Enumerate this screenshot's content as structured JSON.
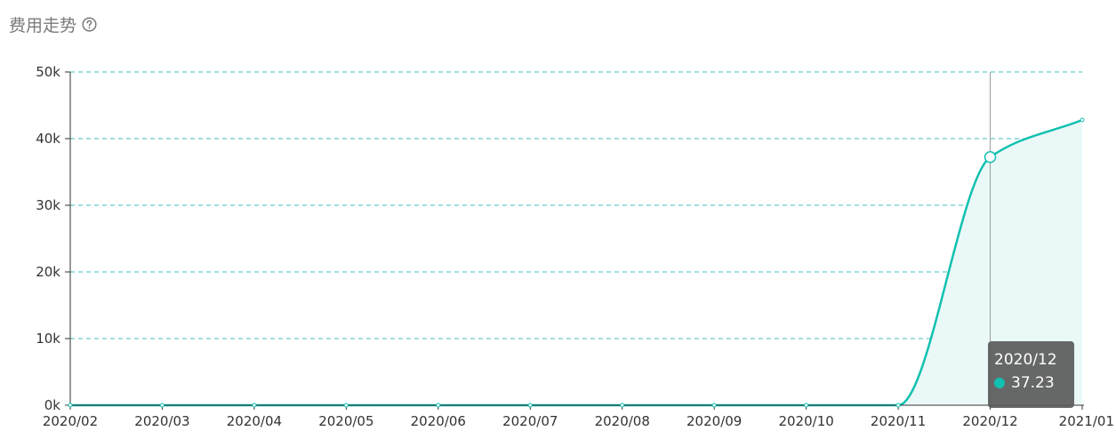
{
  "header": {
    "title": "费用走势",
    "help_icon": "question-circle-icon"
  },
  "colors": {
    "line": "#11c0b0",
    "area": "#eaf9f8",
    "grid": "#3cc0c0",
    "axis": "#333333",
    "header_text": "#7a7a7a",
    "tooltip_bg": "#5a5a5a"
  },
  "chart_data": {
    "type": "area",
    "title": "费用走势",
    "xlabel": "",
    "ylabel": "",
    "categories": [
      "2020/02",
      "2020/03",
      "2020/04",
      "2020/05",
      "2020/06",
      "2020/07",
      "2020/08",
      "2020/09",
      "2020/10",
      "2020/11",
      "2020/12",
      "2021/01"
    ],
    "series": [
      {
        "values": [
          0,
          0,
          0,
          0,
          0,
          0,
          0,
          0,
          0,
          0,
          37230,
          42800
        ]
      }
    ],
    "y_ticks": [
      "0k",
      "10k",
      "20k",
      "30k",
      "40k",
      "50k"
    ],
    "ylim": [
      0,
      50000
    ],
    "grid": true,
    "smooth": true
  },
  "tooltip": {
    "title": "2020/12",
    "value": "37.23"
  }
}
